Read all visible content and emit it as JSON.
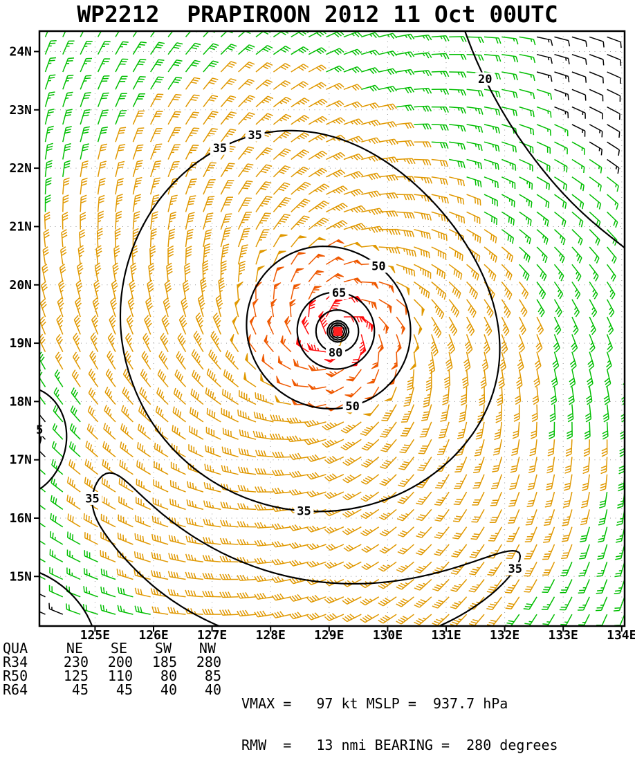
{
  "title": "WP2212  PRAPIROON 2012 11 Oct 00UTC",
  "chart_data": {
    "type": "wind-barb-map",
    "title": "WP2212  PRAPIROON 2012 11 Oct 00UTC",
    "storm": {
      "atcf_id": "WP2212",
      "name": "PRAPIROON",
      "valid_time": "2012 11 Oct 00UTC",
      "center_lon_e": 129.15,
      "center_lat_n": 19.2
    },
    "intensity": {
      "vmax_kt": 97,
      "mslp_hpa": 937.7,
      "rmw_nmi": 13,
      "bearing_deg": 280
    },
    "wind_radii_nmi": {
      "quadrants": [
        "NE",
        "SE",
        "SW",
        "NW"
      ],
      "R34": [
        230,
        200,
        185,
        280
      ],
      "R50": [
        125,
        110,
        80,
        85
      ],
      "R64": [
        45,
        45,
        40,
        40
      ]
    },
    "axes": {
      "lon_min_e": 124.05,
      "lon_max_e": 134.05,
      "lat_min_n": 14.15,
      "lat_max_n": 24.35,
      "lon_tick_labels": [
        "125E",
        "126E",
        "127E",
        "128E",
        "129E",
        "130E",
        "131E",
        "132E",
        "133E",
        "134E"
      ],
      "lat_tick_labels": [
        "15N",
        "16N",
        "17N",
        "18N",
        "19N",
        "20N",
        "21N",
        "22N",
        "23N",
        "24N"
      ],
      "grid_style": "dotted"
    },
    "isotach_levels_kt": [
      5,
      20,
      35,
      50,
      65,
      80
    ],
    "contour_labels": [
      {
        "level": 35,
        "lon_e": 127.57,
        "lat_n": 23.34
      },
      {
        "level": 35,
        "lon_e": 127.16,
        "lat_n": 22.25
      },
      {
        "level": 20,
        "lon_e": 131.47,
        "lat_n": 23.44
      },
      {
        "level": 50,
        "lon_e": 130.23,
        "lat_n": 20.83
      },
      {
        "level": 65,
        "lon_e": 129.17,
        "lat_n": 19.84
      },
      {
        "level": 80,
        "lon_e": 129.11,
        "lat_n": 18.84
      },
      {
        "level": 50,
        "lon_e": 129.4,
        "lat_n": 17.86
      },
      {
        "level": 5,
        "lon_e": 124.09,
        "lat_n": 17.51
      },
      {
        "level": 35,
        "lon_e": 124.68,
        "lat_n": 16.34
      },
      {
        "level": 35,
        "lon_e": 128.58,
        "lat_n": 16.22
      },
      {
        "level": 35,
        "lon_e": 132.24,
        "lat_n": 15.1
      }
    ],
    "barb_speed_colors": [
      {
        "max_kt": 15,
        "color": "#000000"
      },
      {
        "max_kt": 30,
        "color": "#00be00"
      },
      {
        "max_kt": 50,
        "color": "#e09800"
      },
      {
        "max_kt": 65,
        "color": "#ef5800"
      },
      {
        "max_kt": 999,
        "color": "#ff0e0e"
      }
    ],
    "contour_color": "#000000",
    "grid_dot_color": "#9a9a9a",
    "center_marker_color": "#ff2020",
    "field_model": {
      "vmax_kt": 97,
      "rmw_deg": 0.2167,
      "inner_decay_exp": 0.35,
      "outer_decay_start_deg": 2.5,
      "outer_decay_exp": 0.55,
      "asym_amp": 0.07,
      "asym_toward_deg": 135,
      "inflow_deg": 22,
      "outer_band": {
        "radius_deg": 5.0,
        "width_deg": 0.55,
        "center_azimuth_deg": -95,
        "azimuth_sigma_deg": 70,
        "amp_kt": 13
      },
      "weak_zones": [
        {
          "lon_e": 135.9,
          "lat_n": 24.2,
          "sx2": 18,
          "sy2": 14,
          "amp": 0.85
        },
        {
          "lon_e": 123.9,
          "lat_n": 17.4,
          "sx2": 0.5,
          "sy2": 0.8,
          "amp": 0.9
        },
        {
          "lon_e": 123.6,
          "lat_n": 13.9,
          "sx2": 1.2,
          "sy2": 1.0,
          "amp": 0.85
        }
      ],
      "barb_grid": {
        "lon_start_e": 124.15,
        "lat_start_n": 14.35,
        "step_deg": 0.3,
        "n_lon": 34,
        "n_lat": 34
      }
    }
  },
  "footer": {
    "radii_table": {
      "corner_label": "QUA",
      "quadrant_headers": [
        "NE",
        "SE",
        "SW",
        "NW"
      ],
      "rows": [
        {
          "label": "R34",
          "values": [
            "230",
            "200",
            "185",
            "280"
          ]
        },
        {
          "label": "R50",
          "values": [
            "125",
            "110",
            "80",
            "85"
          ]
        },
        {
          "label": "R64",
          "values": [
            "45",
            "45",
            "40",
            "40"
          ]
        }
      ]
    },
    "stats": {
      "vmax_kt": "97",
      "mslp_hpa": "937.7",
      "rmw_nmi": "13",
      "bearing_deg": "280",
      "line1": "VMAX =   97 kt MSLP =  937.7 hPa",
      "line2": "RMW  =   13 nmi BEARING =  280 degrees"
    }
  }
}
